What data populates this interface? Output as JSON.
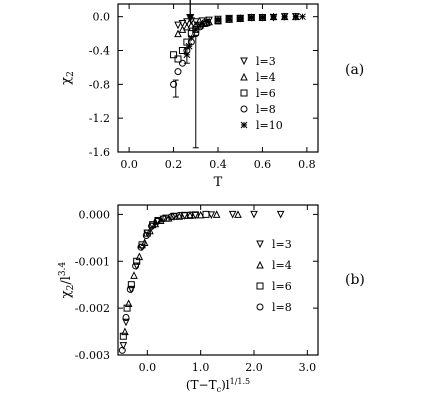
{
  "figure": {
    "panel_a_tag": "(a)",
    "panel_b_tag": "(b)"
  },
  "chart_data": [
    {
      "type": "scatter",
      "panel": "(a)",
      "xlabel": "T",
      "ylabel": "χ₂",
      "xlim": [
        -0.05,
        0.85
      ],
      "ylim": [
        -1.6,
        0.15
      ],
      "xticks": [
        "0.0",
        "0.2",
        "0.4",
        "0.6",
        "0.8"
      ],
      "xtick_values": [
        0.0,
        0.2,
        0.4,
        0.6,
        0.8
      ],
      "yticks": [
        "0.0",
        "-0.4",
        "-0.8",
        "-1.2",
        "-1.6"
      ],
      "ytick_values": [
        0.0,
        -0.4,
        -0.8,
        -1.2,
        -1.6
      ],
      "grid": false,
      "legend_position": "right",
      "annotations": [
        {
          "type": "arrow",
          "x": 0.275,
          "direction": "down"
        }
      ],
      "series": [
        {
          "name": "l=3",
          "marker": "triangle-down",
          "x": [
            0.22,
            0.24,
            0.26,
            0.28,
            0.3,
            0.33,
            0.36,
            0.4,
            0.45,
            0.5,
            0.55,
            0.6,
            0.65,
            0.7,
            0.75
          ],
          "y": [
            -0.1,
            -0.08,
            -0.06,
            -0.05,
            -0.06,
            -0.05,
            -0.04,
            -0.03,
            -0.02,
            -0.02,
            -0.01,
            -0.01,
            -0.01,
            0.0,
            0.0
          ]
        },
        {
          "name": "l=4",
          "marker": "triangle-up",
          "x": [
            0.22,
            0.24,
            0.26,
            0.28,
            0.3,
            0.33,
            0.36,
            0.4,
            0.45,
            0.5,
            0.55,
            0.6,
            0.65,
            0.7,
            0.75
          ],
          "y": [
            -0.2,
            -0.15,
            -0.12,
            -0.1,
            -0.1,
            -0.08,
            -0.06,
            -0.04,
            -0.03,
            -0.02,
            -0.01,
            -0.01,
            0.0,
            0.0,
            0.0
          ]
        },
        {
          "name": "l=6",
          "marker": "square",
          "x": [
            0.2,
            0.22,
            0.24,
            0.26,
            0.28,
            0.3,
            0.32,
            0.35,
            0.4,
            0.45,
            0.5,
            0.55,
            0.6
          ],
          "y": [
            -0.45,
            -0.5,
            -0.4,
            -0.3,
            -0.2,
            -0.15,
            -0.1,
            -0.07,
            -0.05,
            -0.03,
            -0.02,
            -0.01,
            -0.01
          ]
        },
        {
          "name": "l=8",
          "marker": "circle",
          "x": [
            0.2,
            0.22,
            0.24,
            0.26,
            0.28,
            0.3,
            0.32,
            0.35,
            0.4,
            0.45,
            0.5
          ],
          "y": [
            -0.8,
            -0.65,
            -0.55,
            -0.4,
            -0.3,
            -0.2,
            -0.12,
            -0.08,
            -0.05,
            -0.03,
            -0.02
          ]
        },
        {
          "name": "l=10",
          "marker": "star",
          "x": [
            0.26,
            0.27,
            0.28,
            0.3,
            0.32,
            0.35,
            0.4,
            0.45,
            0.5,
            0.55,
            0.6,
            0.65,
            0.7,
            0.75,
            0.78
          ],
          "y": [
            -0.45,
            -0.35,
            -0.25,
            -0.15,
            -0.1,
            -0.06,
            -0.04,
            -0.03,
            -0.02,
            -0.01,
            -0.01,
            0.0,
            0.0,
            0.0,
            0.0
          ]
        }
      ],
      "error_bars": [
        {
          "x": 0.3,
          "y": -0.9,
          "low": -1.55,
          "high": -0.22
        },
        {
          "x": 0.21,
          "y": -0.85,
          "low": -0.95,
          "high": -0.75
        },
        {
          "x": 0.26,
          "y": -0.47,
          "low": -0.55,
          "high": -0.38
        }
      ]
    },
    {
      "type": "scatter",
      "panel": "(b)",
      "xlabel": "(T−T_c)l^{1/1.5}",
      "ylabel": "χ₂/l^{3.4}",
      "xlim": [
        -0.55,
        3.2
      ],
      "ylim": [
        -0.003,
        0.0002
      ],
      "xticks": [
        "0.0",
        "1.0",
        "2.0",
        "3.0"
      ],
      "xtick_values": [
        0.0,
        1.0,
        2.0,
        3.0
      ],
      "yticks": [
        "0.000",
        "-0.001",
        "-0.002",
        "-0.003"
      ],
      "ytick_values": [
        0.0,
        -0.001,
        -0.002,
        -0.003
      ],
      "grid": false,
      "legend_position": "right",
      "series": [
        {
          "name": "l=3",
          "marker": "triangle-down",
          "x": [
            -0.45,
            -0.4,
            -0.3,
            -0.2,
            -0.1,
            0.0,
            0.1,
            0.2,
            0.3,
            0.5,
            0.7,
            0.9,
            1.2,
            1.6,
            2.0,
            2.5
          ],
          "y": [
            -0.0028,
            -0.0023,
            -0.0016,
            -0.0011,
            -0.0007,
            -0.0004,
            -0.00025,
            -0.00015,
            -0.0001,
            -5e-05,
            -3e-05,
            -2e-05,
            -1e-05,
            0.0,
            0.0,
            0.0
          ]
        },
        {
          "name": "l=4",
          "marker": "triangle-up",
          "x": [
            -0.42,
            -0.35,
            -0.25,
            -0.15,
            -0.05,
            0.05,
            0.15,
            0.25,
            0.4,
            0.6,
            0.8,
            1.0,
            1.3,
            1.7
          ],
          "y": [
            -0.0025,
            -0.0019,
            -0.0013,
            -0.0009,
            -0.0006,
            -0.00035,
            -0.0002,
            -0.00013,
            -8e-05,
            -4e-05,
            -2e-05,
            -1e-05,
            0.0,
            0.0
          ]
        },
        {
          "name": "l=6",
          "marker": "square",
          "x": [
            -0.45,
            -0.38,
            -0.3,
            -0.2,
            -0.1,
            0.0,
            0.1,
            0.2,
            0.35,
            0.5,
            0.7,
            0.9,
            1.1
          ],
          "y": [
            -0.0026,
            -0.002,
            -0.0015,
            -0.001,
            -0.00065,
            -0.0004,
            -0.00022,
            -0.00013,
            -8e-05,
            -4e-05,
            -2e-05,
            -1e-05,
            0.0
          ]
        },
        {
          "name": "l=8",
          "marker": "circle",
          "x": [
            -0.47,
            -0.4,
            -0.32,
            -0.22,
            -0.12,
            -0.02,
            0.08,
            0.18,
            0.3,
            0.45,
            0.6,
            0.8
          ],
          "y": [
            -0.0029,
            -0.0022,
            -0.0016,
            -0.0011,
            -0.0007,
            -0.00045,
            -0.00025,
            -0.00015,
            -9e-05,
            -5e-05,
            -2e-05,
            -1e-05
          ]
        }
      ]
    }
  ]
}
